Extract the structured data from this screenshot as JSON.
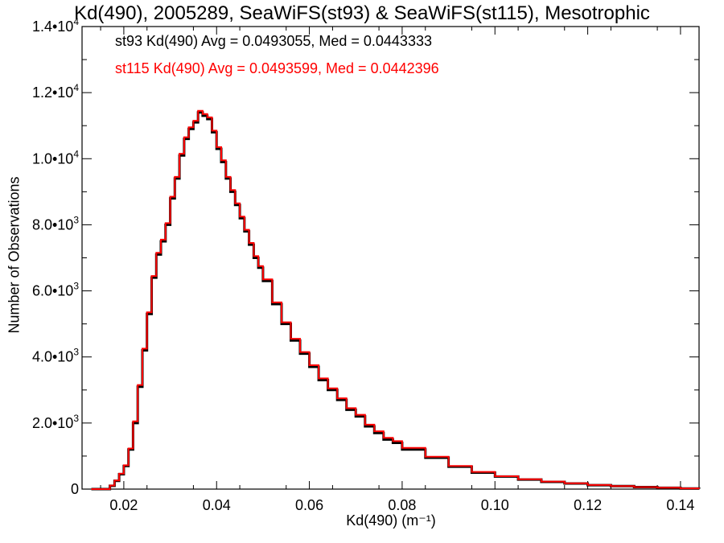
{
  "chart_data": {
    "type": "line",
    "title": "Kd(490), 2005289, SeaWiFS(st93) & SeaWiFS(st115), Mesotrophic",
    "xlabel": "Kd(490) (m⁻¹)",
    "ylabel": "Number of Observations",
    "xlim": [
      0.011,
      0.144
    ],
    "ylim": [
      0,
      14000
    ],
    "x_ticks": [
      0.02,
      0.04,
      0.06,
      0.08,
      0.1,
      0.12,
      0.14
    ],
    "x_tick_labels": [
      "0.02",
      "0.04",
      "0.06",
      "0.08",
      "0.10",
      "0.12",
      "0.14"
    ],
    "y_ticks": [
      0,
      2000,
      4000,
      6000,
      8000,
      10000,
      12000,
      14000
    ],
    "y_tick_labels": [
      {
        "mantissa": "0",
        "exp": ""
      },
      {
        "mantissa": "2.0•10",
        "exp": "3"
      },
      {
        "mantissa": "4.0•10",
        "exp": "3"
      },
      {
        "mantissa": "6.0•10",
        "exp": "3"
      },
      {
        "mantissa": "8.0•10",
        "exp": "3"
      },
      {
        "mantissa": "1.0•10",
        "exp": "4"
      },
      {
        "mantissa": "1.2•10",
        "exp": "4"
      },
      {
        "mantissa": "1.4•10",
        "exp": "4"
      }
    ],
    "grid": false,
    "style": "histogram-step",
    "annotations": [
      "st93 Kd(490) Avg = 0.0493055, Med = 0.0443333",
      "st115 Kd(490) Avg = 0.0493599, Med = 0.0442396"
    ],
    "series": [
      {
        "name": "st93",
        "color": "#000000",
        "x": [
          0.013,
          0.015,
          0.016,
          0.017,
          0.018,
          0.019,
          0.02,
          0.021,
          0.022,
          0.023,
          0.024,
          0.025,
          0.026,
          0.027,
          0.028,
          0.029,
          0.03,
          0.031,
          0.032,
          0.033,
          0.034,
          0.035,
          0.036,
          0.037,
          0.038,
          0.039,
          0.04,
          0.041,
          0.042,
          0.043,
          0.044,
          0.045,
          0.046,
          0.047,
          0.048,
          0.049,
          0.05,
          0.052,
          0.054,
          0.056,
          0.058,
          0.06,
          0.062,
          0.064,
          0.066,
          0.068,
          0.07,
          0.072,
          0.074,
          0.076,
          0.078,
          0.08,
          0.085,
          0.09,
          0.095,
          0.1,
          0.105,
          0.11,
          0.115,
          0.12,
          0.125,
          0.13,
          0.135,
          0.14,
          0.144
        ],
        "y": [
          0,
          0,
          0,
          100,
          250,
          450,
          700,
          1200,
          2000,
          3100,
          4200,
          5300,
          6400,
          7100,
          7500,
          8000,
          8800,
          9400,
          10100,
          10600,
          10900,
          11100,
          11400,
          11300,
          11200,
          10800,
          10300,
          9900,
          9400,
          9000,
          8600,
          8200,
          7800,
          7400,
          7000,
          6700,
          6300,
          5600,
          5000,
          4500,
          4100,
          3700,
          3300,
          3000,
          2700,
          2400,
          2200,
          1900,
          1700,
          1500,
          1400,
          1200,
          950,
          680,
          500,
          380,
          290,
          220,
          170,
          120,
          90,
          60,
          40,
          20,
          10
        ]
      },
      {
        "name": "st115",
        "color": "#ff0000",
        "x": [
          0.013,
          0.015,
          0.016,
          0.017,
          0.018,
          0.019,
          0.02,
          0.021,
          0.022,
          0.023,
          0.024,
          0.025,
          0.026,
          0.027,
          0.028,
          0.029,
          0.03,
          0.031,
          0.032,
          0.033,
          0.034,
          0.035,
          0.036,
          0.037,
          0.038,
          0.039,
          0.04,
          0.041,
          0.042,
          0.043,
          0.044,
          0.045,
          0.046,
          0.047,
          0.048,
          0.049,
          0.05,
          0.052,
          0.054,
          0.056,
          0.058,
          0.06,
          0.062,
          0.064,
          0.066,
          0.068,
          0.07,
          0.072,
          0.074,
          0.076,
          0.078,
          0.08,
          0.085,
          0.09,
          0.095,
          0.1,
          0.105,
          0.11,
          0.115,
          0.12,
          0.125,
          0.13,
          0.135,
          0.14,
          0.144
        ],
        "y": [
          0,
          0,
          0,
          110,
          260,
          470,
          720,
          1230,
          2050,
          3150,
          4250,
          5350,
          6450,
          7150,
          7550,
          8050,
          8850,
          9450,
          10150,
          10650,
          10950,
          11150,
          11450,
          11350,
          11250,
          10850,
          10350,
          9950,
          9450,
          9050,
          8650,
          8250,
          7850,
          7450,
          7050,
          6750,
          6350,
          5650,
          5050,
          4550,
          4150,
          3750,
          3350,
          3050,
          2750,
          2450,
          2250,
          1950,
          1750,
          1550,
          1450,
          1250,
          980,
          700,
          520,
          390,
          300,
          230,
          175,
          125,
          92,
          62,
          42,
          21,
          11
        ]
      }
    ]
  }
}
